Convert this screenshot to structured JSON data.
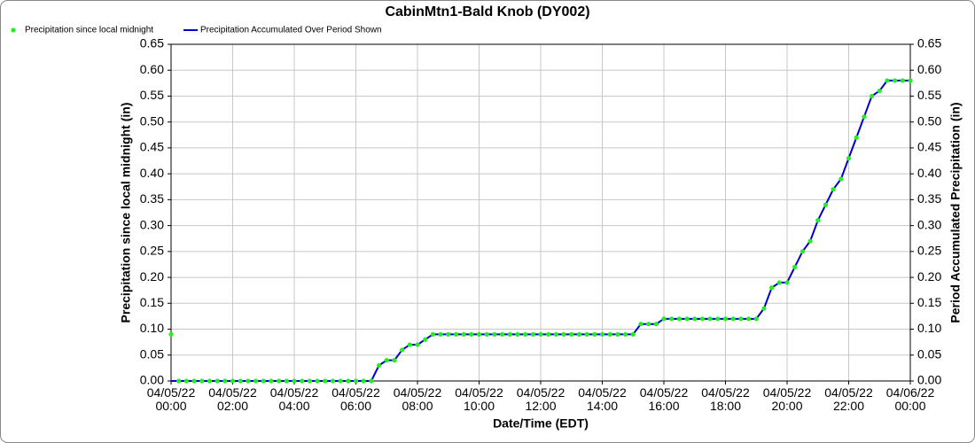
{
  "chart_data": {
    "type": "line",
    "title": "CabinMtn1-Bald Knob (DY002)",
    "x_label": "Date/Time (EDT)",
    "y_label": "Precipitation since local midnight (in)",
    "y2_label": "Period Accumulated Precipitation (in)",
    "legend": "top-left",
    "grid": true,
    "x": [
      "04/05/22 00:00",
      "04/05/22 00:15",
      "04/05/22 00:30",
      "04/05/22 00:45",
      "04/05/22 01:00",
      "04/05/22 01:15",
      "04/05/22 01:30",
      "04/05/22 01:45",
      "04/05/22 02:00",
      "04/05/22 02:15",
      "04/05/22 02:30",
      "04/05/22 02:45",
      "04/05/22 03:00",
      "04/05/22 03:15",
      "04/05/22 03:30",
      "04/05/22 03:45",
      "04/05/22 04:00",
      "04/05/22 04:15",
      "04/05/22 04:30",
      "04/05/22 04:45",
      "04/05/22 05:00",
      "04/05/22 05:15",
      "04/05/22 05:30",
      "04/05/22 05:45",
      "04/05/22 06:00",
      "04/05/22 06:15",
      "04/05/22 06:30",
      "04/05/22 06:45",
      "04/05/22 07:00",
      "04/05/22 07:15",
      "04/05/22 07:30",
      "04/05/22 07:45",
      "04/05/22 08:00",
      "04/05/22 08:15",
      "04/05/22 08:30",
      "04/05/22 08:45",
      "04/05/22 09:00",
      "04/05/22 09:15",
      "04/05/22 09:30",
      "04/05/22 09:45",
      "04/05/22 10:00",
      "04/05/22 10:15",
      "04/05/22 10:30",
      "04/05/22 10:45",
      "04/05/22 11:00",
      "04/05/22 11:15",
      "04/05/22 11:30",
      "04/05/22 11:45",
      "04/05/22 12:00",
      "04/05/22 12:15",
      "04/05/22 12:30",
      "04/05/22 12:45",
      "04/05/22 13:00",
      "04/05/22 13:15",
      "04/05/22 13:30",
      "04/05/22 13:45",
      "04/05/22 14:00",
      "04/05/22 14:15",
      "04/05/22 14:30",
      "04/05/22 14:45",
      "04/05/22 15:00",
      "04/05/22 15:15",
      "04/05/22 15:30",
      "04/05/22 15:45",
      "04/05/22 16:00",
      "04/05/22 16:15",
      "04/05/22 16:30",
      "04/05/22 16:45",
      "04/05/22 17:00",
      "04/05/22 17:15",
      "04/05/22 17:30",
      "04/05/22 17:45",
      "04/05/22 18:00",
      "04/05/22 18:15",
      "04/05/22 18:30",
      "04/05/22 18:45",
      "04/05/22 19:00",
      "04/05/22 19:15",
      "04/05/22 19:30",
      "04/05/22 19:45",
      "04/05/22 20:00",
      "04/05/22 20:15",
      "04/05/22 20:30",
      "04/05/22 20:45",
      "04/05/22 21:00",
      "04/05/22 21:15",
      "04/05/22 21:30",
      "04/05/22 21:45",
      "04/05/22 22:00",
      "04/05/22 22:15",
      "04/05/22 22:30",
      "04/05/22 22:45",
      "04/05/22 23:00",
      "04/05/22 23:15",
      "04/05/22 23:30",
      "04/05/22 23:45",
      "04/06/22 00:00"
    ],
    "series": [
      {
        "name": "Precipitation since local midnight",
        "color": "#22ee22",
        "style": "dots",
        "values": [
          0.09,
          0,
          0,
          0,
          0,
          0,
          0,
          0,
          0,
          0,
          0,
          0,
          0,
          0,
          0,
          0,
          0,
          0,
          0,
          0,
          0,
          0,
          0,
          0,
          0,
          0,
          0,
          0.03,
          0.04,
          0.04,
          0.06,
          0.07,
          0.07,
          0.08,
          0.09,
          0.09,
          0.09,
          0.09,
          0.09,
          0.09,
          0.09,
          0.09,
          0.09,
          0.09,
          0.09,
          0.09,
          0.09,
          0.09,
          0.09,
          0.09,
          0.09,
          0.09,
          0.09,
          0.09,
          0.09,
          0.09,
          0.09,
          0.09,
          0.09,
          0.09,
          0.09,
          0.11,
          0.11,
          0.11,
          0.12,
          0.12,
          0.12,
          0.12,
          0.12,
          0.12,
          0.12,
          0.12,
          0.12,
          0.12,
          0.12,
          0.12,
          0.12,
          0.14,
          0.18,
          0.19,
          0.19,
          0.22,
          0.25,
          0.27,
          0.31,
          0.34,
          0.37,
          0.39,
          0.43,
          0.47,
          0.51,
          0.55,
          0.56,
          0.58,
          0.58,
          0.58,
          0.58
        ]
      },
      {
        "name": "Precipitation Accumulated Over Period Shown",
        "color": "#0000cc",
        "style": "line",
        "axis": "y2",
        "values": [
          0,
          0,
          0,
          0,
          0,
          0,
          0,
          0,
          0,
          0,
          0,
          0,
          0,
          0,
          0,
          0,
          0,
          0,
          0,
          0,
          0,
          0,
          0,
          0,
          0,
          0,
          0,
          0.03,
          0.04,
          0.04,
          0.06,
          0.07,
          0.07,
          0.08,
          0.09,
          0.09,
          0.09,
          0.09,
          0.09,
          0.09,
          0.09,
          0.09,
          0.09,
          0.09,
          0.09,
          0.09,
          0.09,
          0.09,
          0.09,
          0.09,
          0.09,
          0.09,
          0.09,
          0.09,
          0.09,
          0.09,
          0.09,
          0.09,
          0.09,
          0.09,
          0.09,
          0.11,
          0.11,
          0.11,
          0.12,
          0.12,
          0.12,
          0.12,
          0.12,
          0.12,
          0.12,
          0.12,
          0.12,
          0.12,
          0.12,
          0.12,
          0.12,
          0.14,
          0.18,
          0.19,
          0.19,
          0.22,
          0.25,
          0.27,
          0.31,
          0.34,
          0.37,
          0.39,
          0.43,
          0.47,
          0.51,
          0.55,
          0.56,
          0.58,
          0.58,
          0.58,
          0.58
        ]
      }
    ],
    "xlim": [
      "04/05/22 00:00",
      "04/06/22 00:00"
    ],
    "xticks": [
      "04/05/22 00:00",
      "04/05/22 02:00",
      "04/05/22 04:00",
      "04/05/22 06:00",
      "04/05/22 08:00",
      "04/05/22 10:00",
      "04/05/22 12:00",
      "04/05/22 14:00",
      "04/05/22 16:00",
      "04/05/22 18:00",
      "04/05/22 20:00",
      "04/05/22 22:00",
      "04/06/22 00:00"
    ],
    "ylim": [
      0,
      0.65
    ],
    "yticks": [
      {
        "value": 0,
        "label": "0.00"
      },
      {
        "value": 0.05,
        "label": "0.05"
      },
      {
        "value": 0.1,
        "label": "0.10"
      },
      {
        "value": 0.15,
        "label": "0.15"
      },
      {
        "value": 0.2,
        "label": "0.20"
      },
      {
        "value": 0.25,
        "label": "0.25"
      },
      {
        "value": 0.3,
        "label": "0.30"
      },
      {
        "value": 0.35,
        "label": "0.35"
      },
      {
        "value": 0.4,
        "label": "0.40"
      },
      {
        "value": 0.45,
        "label": "0.45"
      },
      {
        "value": 0.5,
        "label": "0.50"
      },
      {
        "value": 0.55,
        "label": "0.55"
      },
      {
        "value": 0.6,
        "label": "0.60"
      },
      {
        "value": 0.65,
        "label": "0.65"
      }
    ],
    "y2lim": [
      0,
      0.65
    ],
    "y2ticks": [
      {
        "value": 0,
        "label": "0.00"
      },
      {
        "value": 0.05,
        "label": "0.05"
      },
      {
        "value": 0.1,
        "label": "0.10"
      },
      {
        "value": 0.15,
        "label": "0.15"
      },
      {
        "value": 0.2,
        "label": "0.20"
      },
      {
        "value": 0.25,
        "label": "0.25"
      },
      {
        "value": 0.3,
        "label": "0.30"
      },
      {
        "value": 0.35,
        "label": "0.35"
      },
      {
        "value": 0.4,
        "label": "0.40"
      },
      {
        "value": 0.45,
        "label": "0.45"
      },
      {
        "value": 0.5,
        "label": "0.50"
      },
      {
        "value": 0.55,
        "label": "0.55"
      },
      {
        "value": 0.6,
        "label": "0.60"
      },
      {
        "value": 0.65,
        "label": "0.65"
      }
    ]
  }
}
